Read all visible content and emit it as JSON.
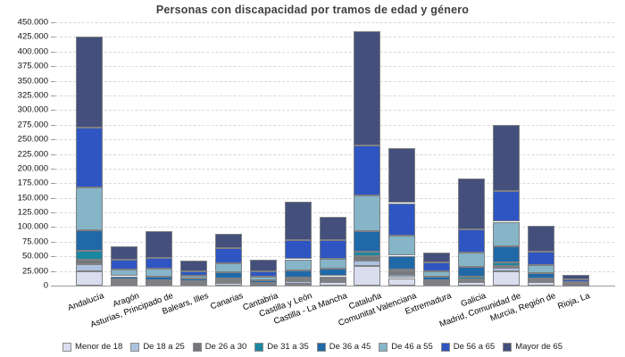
{
  "title": "Personas con discapacidad por tramos de edad y género",
  "chart_data": {
    "type": "bar",
    "stacked": true,
    "title": "Personas con discapacidad por tramos de edad y género",
    "xlabel": "",
    "ylabel": "",
    "ylim": [
      0,
      450000
    ],
    "ytick_step": 25000,
    "ytick_labels": [
      "0",
      "25.000",
      "50.000",
      "75.000",
      "100.000",
      "125.000",
      "150.000",
      "175.000",
      "200.000",
      "225.000",
      "250.000",
      "275.000",
      "300.000",
      "325.000",
      "350.000",
      "375.000",
      "400.000",
      "425.000",
      "450.000"
    ],
    "grid": "horizontal-dashed",
    "legend_position": "bottom",
    "categories": [
      "Andalucía",
      "Aragón",
      "Asturias, Principado de",
      "Balears, Illes",
      "Canarias",
      "Cantabria",
      "Castilla y León",
      "Castilla - La Mancha",
      "Cataluña",
      "Comunitat Valenciana",
      "Extremadura",
      "Galicia",
      "Madrid, Comunidad de",
      "Murcia, Región de",
      "Rioja, La"
    ],
    "series": [
      {
        "name": "Menor de 18",
        "color": "#d9ddee",
        "values": [
          25000,
          3000,
          2500,
          3000,
          5000,
          1500,
          3000,
          6000,
          33000,
          13000,
          3000,
          6000,
          25000,
          6000,
          1000
        ]
      },
      {
        "name": "De 18 a 25",
        "color": "#aec2e0",
        "values": [
          11000,
          1500,
          2000,
          1500,
          2000,
          500,
          5000,
          3500,
          10000,
          5000,
          2000,
          3000,
          5000,
          2000,
          500
        ]
      },
      {
        "name": "De 26 a 30",
        "color": "#75777a",
        "values": [
          8000,
          3500,
          2000,
          2000,
          3500,
          1000,
          3000,
          2500,
          8000,
          6000,
          2000,
          2000,
          4000,
          2000,
          500
        ]
      },
      {
        "name": "De 31 a 35",
        "color": "#1b87a1",
        "values": [
          16000,
          2000,
          2500,
          1500,
          2000,
          1000,
          3500,
          4000,
          7000,
          4000,
          2000,
          4000,
          5000,
          2000,
          500
        ]
      },
      {
        "name": "De 36 a 45",
        "color": "#2069a8",
        "values": [
          35000,
          6000,
          6000,
          4000,
          11000,
          5000,
          11500,
          12500,
          35000,
          23000,
          6000,
          17000,
          28000,
          9000,
          1500
        ]
      },
      {
        "name": "De 46 a 55",
        "color": "#85b5c6",
        "values": [
          73000,
          12000,
          14000,
          4500,
          15000,
          6500,
          19000,
          17000,
          61000,
          35000,
          10000,
          24000,
          42000,
          14000,
          2000
        ]
      },
      {
        "name": "De 56 a 65",
        "color": "#2e55c1",
        "values": [
          102000,
          16000,
          18000,
          8000,
          25000,
          9000,
          33000,
          32500,
          86000,
          55000,
          14000,
          40000,
          53000,
          23000,
          4000
        ]
      },
      {
        "name": "Mayor de 65",
        "color": "#44507b",
        "values": [
          155000,
          23000,
          46000,
          18000,
          24500,
          20000,
          65000,
          40000,
          195000,
          94000,
          18000,
          87000,
          112000,
          44000,
          8000
        ]
      }
    ]
  },
  "colors": {
    "background": "#ffffff",
    "gridline": "#d9d9d9",
    "axis": "#9a9a9a",
    "bar_border": "#7e8084",
    "title_text": "#3f3f3f"
  }
}
